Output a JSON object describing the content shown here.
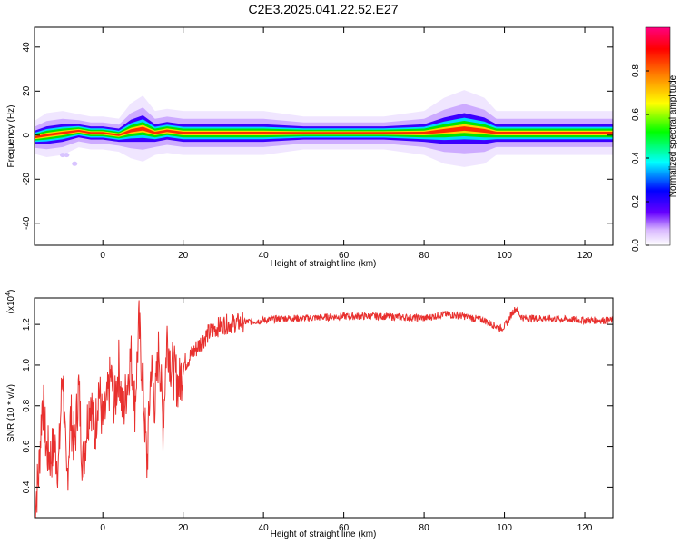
{
  "title": "C2E3.2025.041.22.52.E27",
  "chart_data": [
    {
      "type": "heatmap",
      "xlabel": "Height of straight line (km)",
      "ylabel": "Frequency (Hz)",
      "xlim": [
        -17,
        127
      ],
      "ylim": [
        -50,
        49
      ],
      "x_ticks": [
        0,
        20,
        40,
        60,
        80,
        100,
        120
      ],
      "y_ticks": [
        -40,
        -20,
        0,
        20,
        40
      ],
      "grid": false,
      "ridge": {
        "x": [
          -17,
          -14,
          -10,
          -6,
          -3,
          0,
          4,
          7,
          10,
          13,
          16,
          20,
          25,
          30,
          40,
          50,
          60,
          70,
          80,
          85,
          90,
          95,
          98,
          101,
          105,
          110,
          120,
          127
        ],
        "freq": [
          -1,
          0,
          1,
          2,
          1,
          1,
          0,
          2,
          3,
          1,
          2,
          1,
          1,
          1,
          1,
          1,
          1,
          1,
          1,
          2,
          3,
          2,
          1,
          1,
          1,
          1,
          1,
          1
        ],
        "width": [
          1.5,
          2,
          2,
          1.5,
          1.5,
          1.5,
          1.5,
          2.5,
          3,
          2,
          2,
          2,
          2,
          2,
          2,
          1.5,
          1.5,
          1.5,
          2,
          3,
          3.5,
          3,
          2,
          2,
          2,
          2,
          2,
          2
        ]
      },
      "colorbar": {
        "label": "Normalized spectral amplitude",
        "range": [
          0,
          1
        ],
        "ticks": [
          0.0,
          0.2,
          0.4,
          0.6,
          0.8
        ]
      }
    },
    {
      "type": "line",
      "xlabel": "Height of straight line (km)",
      "ylabel": "SNR (10 * v/v)",
      "y_multiplier": "(x10",
      "y_multiplier_exp": "4",
      "y_multiplier_close": ")",
      "xlim": [
        -17,
        127
      ],
      "ylim": [
        0.25,
        1.33
      ],
      "x_ticks": [
        0,
        20,
        40,
        60,
        80,
        100,
        120
      ],
      "y_ticks": [
        0.4,
        0.6,
        0.8,
        1.0,
        1.2
      ],
      "grid": false,
      "color": "#e8302e",
      "series": [
        {
          "x": [
            -17,
            -16,
            -15,
            -14,
            -13,
            -12,
            -11,
            -10,
            -9,
            -8,
            -7,
            -6,
            -5,
            -4,
            -3,
            -2,
            -1,
            0,
            1,
            2,
            3,
            4,
            5,
            6,
            7,
            8,
            9,
            10,
            11,
            12,
            13,
            14,
            15,
            16,
            17,
            18,
            19,
            20,
            22,
            24,
            26,
            28,
            30,
            35,
            40,
            45,
            50,
            60,
            70,
            80,
            85,
            90,
            95,
            99,
            100,
            101,
            102,
            103,
            104,
            105,
            110,
            120,
            127
          ],
          "y": [
            0.3,
            0.45,
            0.85,
            0.58,
            0.55,
            0.6,
            0.5,
            1.0,
            0.4,
            0.75,
            0.6,
            0.9,
            0.5,
            0.7,
            0.85,
            0.65,
            0.9,
            0.7,
            0.8,
            0.95,
            0.8,
            1.0,
            0.75,
            0.9,
            1.05,
            0.8,
            1.2,
            0.9,
            0.5,
            1.0,
            0.8,
            1.1,
            0.7,
            1.15,
            1.0,
            0.95,
            0.9,
            1.0,
            1.05,
            1.1,
            1.15,
            1.18,
            1.2,
            1.21,
            1.22,
            1.23,
            1.23,
            1.24,
            1.24,
            1.23,
            1.25,
            1.24,
            1.22,
            1.18,
            1.19,
            1.22,
            1.26,
            1.28,
            1.24,
            1.23,
            1.23,
            1.22,
            1.22
          ]
        }
      ]
    }
  ]
}
